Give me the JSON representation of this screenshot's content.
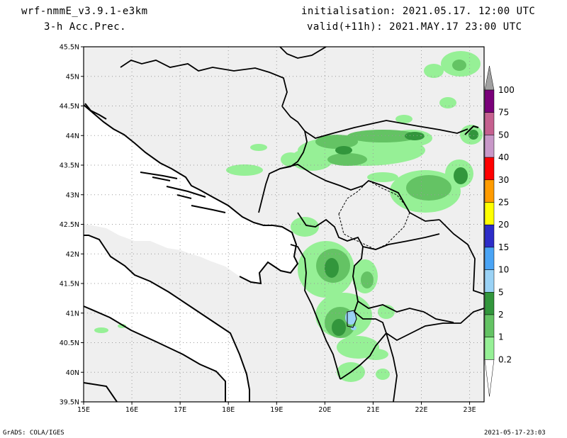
{
  "header": {
    "model": "wrf-nmmE_v3.9.1-e3km",
    "field": "3-h Acc.Prec.",
    "initialisation": "initialisation: 2021.05.17.  12:00 UTC",
    "valid": "valid(+11h): 2021.MAY.17 23:00 UTC"
  },
  "footer": {
    "left": "GrADS: COLA/IGES",
    "right": "2021-05-17-23:03"
  },
  "map": {
    "lat_labels": [
      "45.5N",
      "45N",
      "44.5N",
      "44N",
      "43.5N",
      "43N",
      "42.5N",
      "42N",
      "41.5N",
      "41N",
      "40.5N",
      "40N",
      "39.5N"
    ],
    "lon_labels": [
      "15E",
      "16E",
      "17E",
      "18E",
      "19E",
      "20E",
      "21E",
      "22E",
      "23E"
    ],
    "lat_range": [
      39.5,
      45.5
    ],
    "lon_range": [
      15,
      23.3
    ],
    "land_color": "#efefef",
    "sea_color": "#ffffff",
    "grid_color": "#9a9a9a"
  },
  "colorbar": {
    "labels": [
      "100",
      "75",
      "50",
      "40",
      "30",
      "25",
      "20",
      "15",
      "10",
      "5",
      "2",
      "1",
      "0.2"
    ],
    "colors": [
      "#7a007a",
      "#c5608f",
      "#c898c8",
      "#ff0000",
      "#ff9b00",
      "#ffff00",
      "#2d2dc8",
      "#4aa4f5",
      "#9ad2f5",
      "#32963c",
      "#64c364",
      "#96f096"
    ],
    "top_arrow_color": "#a0a0a0"
  },
  "precip_colors": {
    "light": "#96f096",
    "medium": "#64c364",
    "heavy": "#32963c",
    "lake": "#9ad2f5"
  }
}
